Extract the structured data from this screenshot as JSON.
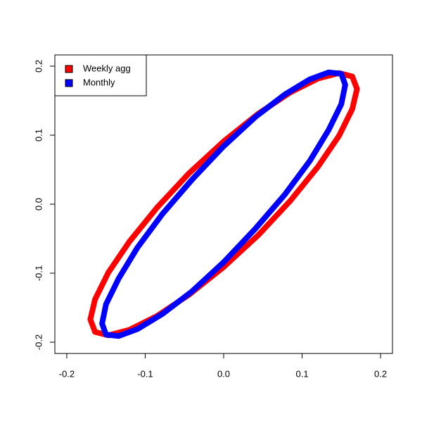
{
  "chart_data": {
    "type": "line",
    "legend": "top-left",
    "xlim": [
      -0.2152,
      0.2152
    ],
    "ylim": [
      -0.2163,
      0.2163
    ],
    "xticks": [
      -0.2,
      -0.1,
      0.0,
      0.1,
      0.2
    ],
    "yticks": [
      -0.2,
      -0.1,
      0.0,
      0.1,
      0.2
    ],
    "xtick_labels": [
      "-0.2",
      "-0.1",
      "0.0",
      "0.1",
      "0.2"
    ],
    "ytick_labels": [
      "-0.2",
      "-0.1",
      "0.0",
      "0.1",
      "0.2"
    ],
    "series": [
      {
        "name": "Weekly agg",
        "color": "#ff0000",
        "x": [
          0.17,
          0.164,
          0.147,
          0.12,
          0.085,
          0.044,
          0,
          -0.044,
          -0.085,
          -0.12,
          -0.147,
          -0.164,
          -0.17,
          -0.164,
          -0.147,
          -0.12,
          -0.085,
          -0.044,
          0,
          0.044,
          0.085,
          0.12,
          0.147,
          0.164
        ],
        "values": [
          0.167,
          0.185,
          0.19,
          0.182,
          0.162,
          0.131,
          0.091,
          0.045,
          -0.005,
          -0.054,
          -0.099,
          -0.138,
          -0.167,
          -0.185,
          -0.19,
          -0.182,
          -0.162,
          -0.131,
          -0.091,
          -0.045,
          0.005,
          0.054,
          0.099,
          0.138
        ]
      },
      {
        "name": "Monthly",
        "color": "#0000ff",
        "x": [
          0.155,
          0.15,
          0.134,
          0.11,
          0.078,
          0.04,
          0,
          -0.04,
          -0.078,
          -0.11,
          -0.134,
          -0.15,
          -0.155,
          -0.15,
          -0.134,
          -0.11,
          -0.078,
          -0.04,
          0,
          0.04,
          0.078,
          0.11,
          0.134,
          0.15
        ],
        "values": [
          0.173,
          0.189,
          0.191,
          0.181,
          0.159,
          0.126,
          0.084,
          0.036,
          -0.014,
          -0.063,
          -0.108,
          -0.145,
          -0.173,
          -0.189,
          -0.191,
          -0.181,
          -0.159,
          -0.126,
          -0.084,
          -0.036,
          0.014,
          0.063,
          0.108,
          0.145
        ]
      }
    ]
  }
}
